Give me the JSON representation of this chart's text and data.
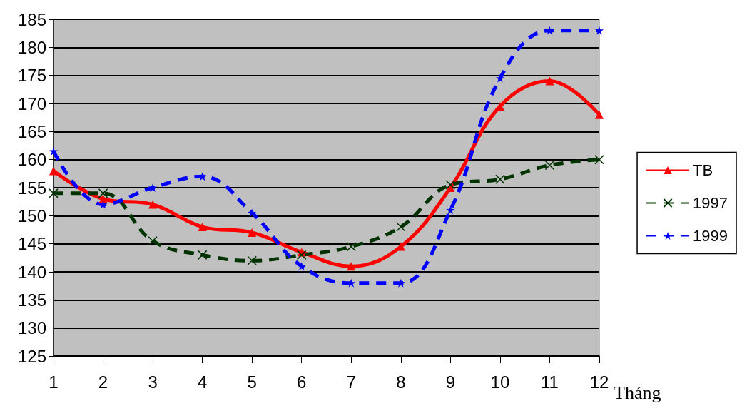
{
  "chart_data": {
    "type": "line",
    "xlabel": "Tháng",
    "x": [
      1,
      2,
      3,
      4,
      5,
      6,
      7,
      8,
      9,
      10,
      11,
      12
    ],
    "xlim": [
      1,
      12
    ],
    "xticks": [
      1,
      2,
      3,
      4,
      5,
      6,
      7,
      8,
      9,
      10,
      11,
      12
    ],
    "series": [
      {
        "name": "TB",
        "color": "#ff0000",
        "marker": "triangle",
        "line_style": "solid",
        "values": [
          158,
          153,
          152,
          148,
          147,
          143.5,
          141,
          144.5,
          155,
          169.5,
          174,
          168
        ]
      },
      {
        "name": "1997",
        "color": "#003300",
        "marker": "cross",
        "line_style": "dashed",
        "values": [
          154,
          154,
          145.5,
          143,
          142,
          143,
          144.5,
          148,
          155.5,
          156.5,
          159,
          160
        ]
      },
      {
        "name": "1999",
        "color": "#0000ff",
        "marker": "star",
        "line_style": "dashed",
        "values": [
          161.5,
          152,
          155,
          157,
          150.5,
          141,
          138,
          138,
          151,
          174.5,
          183,
          183
        ]
      }
    ],
    "ylim": [
      125,
      185
    ],
    "yticks": [
      125,
      130,
      135,
      140,
      145,
      150,
      155,
      160,
      165,
      170,
      175,
      180,
      185
    ],
    "grid": "y",
    "legend": "right"
  }
}
